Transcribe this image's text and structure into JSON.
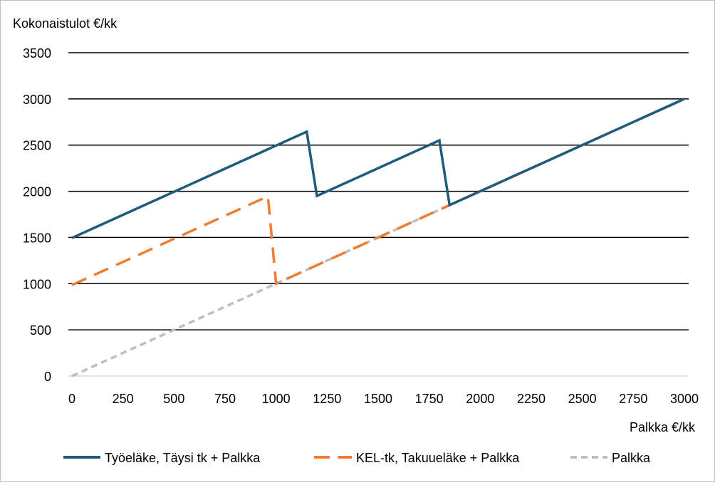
{
  "chart_data": {
    "type": "line",
    "title": "",
    "ylabel": "Kokonaistulot €/kk",
    "xlabel": "Palkka €/kk",
    "xlim": [
      0,
      3000
    ],
    "ylim": [
      0,
      3500
    ],
    "x_ticks": [
      0,
      250,
      500,
      750,
      1000,
      1250,
      1500,
      1750,
      2000,
      2250,
      2500,
      2750,
      3000
    ],
    "y_ticks": [
      0,
      500,
      1000,
      1500,
      2000,
      2500,
      3000,
      3500
    ],
    "grid": "horizontal",
    "legend_position": "bottom",
    "series": [
      {
        "name": "Työeläke, Täysi tk + Palkka",
        "color": "#1f5b7a",
        "style": "solid",
        "points": [
          [
            0,
            1495
          ],
          [
            1150,
            2645
          ],
          [
            1200,
            1950
          ],
          [
            1800,
            2550
          ],
          [
            1850,
            1850
          ],
          [
            3000,
            3000
          ]
        ]
      },
      {
        "name": "KEL-tk, Takuueläke + Palkka",
        "color": "#ed7d31",
        "style": "dashed",
        "points": [
          [
            0,
            985
          ],
          [
            960,
            1945
          ],
          [
            1000,
            1000
          ],
          [
            3000,
            3000
          ]
        ]
      },
      {
        "name": "Palkka",
        "color": "#bfbfbf",
        "style": "dashed",
        "points": [
          [
            0,
            0
          ],
          [
            3000,
            3000
          ]
        ]
      }
    ]
  }
}
